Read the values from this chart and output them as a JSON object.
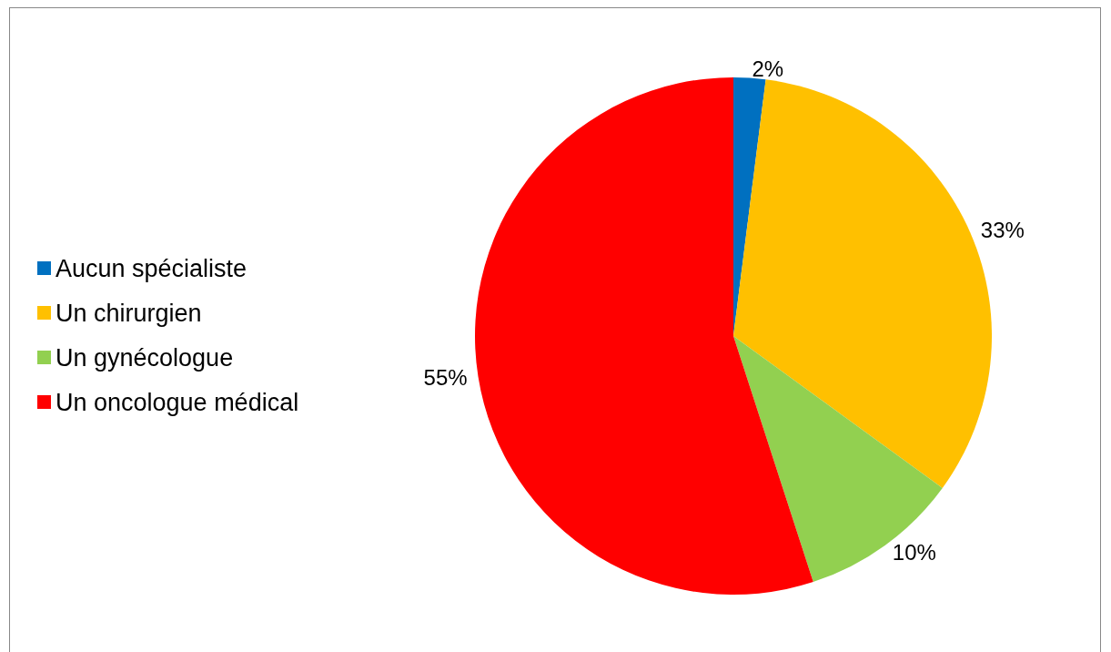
{
  "chart_data": {
    "type": "pie",
    "categories": [
      "Aucun spécialiste",
      "Un chirurgien",
      "Un gynécologue",
      "Un oncologue médical"
    ],
    "values": [
      2,
      33,
      10,
      55
    ],
    "colors": [
      "#0070c0",
      "#ffc000",
      "#92d050",
      "#ff0000"
    ],
    "value_labels": [
      "2%",
      "33%",
      "10%",
      "55%"
    ],
    "legend": "left"
  }
}
